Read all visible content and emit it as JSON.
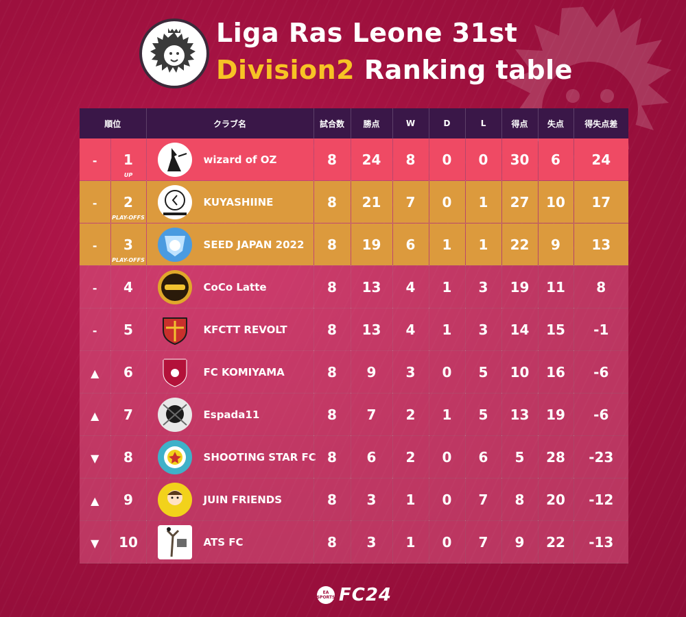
{
  "title": {
    "line1": "Liga Ras Leone 31st",
    "line2_accent": "Division2",
    "line2_rest": " Ranking table"
  },
  "logo_text": "Liga Ras Leone",
  "headers": {
    "trend": "順位",
    "club": "クラブ名",
    "played": "試合数",
    "points": "勝点",
    "w": "W",
    "d": "D",
    "l": "L",
    "gf": "得点",
    "ga": "失点",
    "gd": "得失点差"
  },
  "rows": [
    {
      "trend": "-",
      "pos": "1",
      "note": "UP",
      "club": "wizard of OZ",
      "played": "8",
      "points": "24",
      "w": "8",
      "d": "0",
      "l": "0",
      "gf": "30",
      "ga": "6",
      "gd": "24"
    },
    {
      "trend": "-",
      "pos": "2",
      "note": "PLAY-OFFS",
      "club": "KUYASHIINE",
      "played": "8",
      "points": "21",
      "w": "7",
      "d": "0",
      "l": "1",
      "gf": "27",
      "ga": "10",
      "gd": "17"
    },
    {
      "trend": "-",
      "pos": "3",
      "note": "PLAY-OFFS",
      "club": "SEED JAPAN 2022",
      "played": "8",
      "points": "19",
      "w": "6",
      "d": "1",
      "l": "1",
      "gf": "22",
      "ga": "9",
      "gd": "13"
    },
    {
      "trend": "-",
      "pos": "4",
      "note": "",
      "club": "CoCo Latte",
      "played": "8",
      "points": "13",
      "w": "4",
      "d": "1",
      "l": "3",
      "gf": "19",
      "ga": "11",
      "gd": "8"
    },
    {
      "trend": "-",
      "pos": "5",
      "note": "",
      "club": "KFCTT REVOLT",
      "played": "8",
      "points": "13",
      "w": "4",
      "d": "1",
      "l": "3",
      "gf": "14",
      "ga": "15",
      "gd": "-1"
    },
    {
      "trend": "▲",
      "pos": "6",
      "note": "",
      "club": "FC KOMIYAMA",
      "played": "8",
      "points": "9",
      "w": "3",
      "d": "0",
      "l": "5",
      "gf": "10",
      "ga": "16",
      "gd": "-6"
    },
    {
      "trend": "▲",
      "pos": "7",
      "note": "",
      "club": "Espada11",
      "played": "8",
      "points": "7",
      "w": "2",
      "d": "1",
      "l": "5",
      "gf": "13",
      "ga": "19",
      "gd": "-6"
    },
    {
      "trend": "▼",
      "pos": "8",
      "note": "",
      "club": "SHOOTING STAR FC",
      "played": "8",
      "points": "6",
      "w": "2",
      "d": "0",
      "l": "6",
      "gf": "5",
      "ga": "28",
      "gd": "-23"
    },
    {
      "trend": "▲",
      "pos": "9",
      "note": "",
      "club": "JUIN FRIENDS",
      "played": "8",
      "points": "3",
      "w": "1",
      "d": "0",
      "l": "7",
      "gf": "8",
      "ga": "20",
      "gd": "-12"
    },
    {
      "trend": "▼",
      "pos": "10",
      "note": "",
      "club": "ATS FC",
      "played": "8",
      "points": "3",
      "w": "1",
      "d": "0",
      "l": "7",
      "gf": "9",
      "ga": "22",
      "gd": "-13"
    }
  ],
  "crest_colors": [
    "#1b1b1b",
    "#ffffff",
    "#4a9be0",
    "#e0a82a",
    "#c9302c",
    "#b3123a",
    "#e8e8e8",
    "#3fb1c9",
    "#f2d21b",
    "#5a4a3a"
  ],
  "footer": {
    "badge": "EA SPORTS",
    "brand": "FC24"
  },
  "colors": {
    "accent": "#f7c325",
    "header_bg": "#3a1748",
    "row_first": "#ef4a64",
    "row_playoff": "#dc9a3d"
  }
}
